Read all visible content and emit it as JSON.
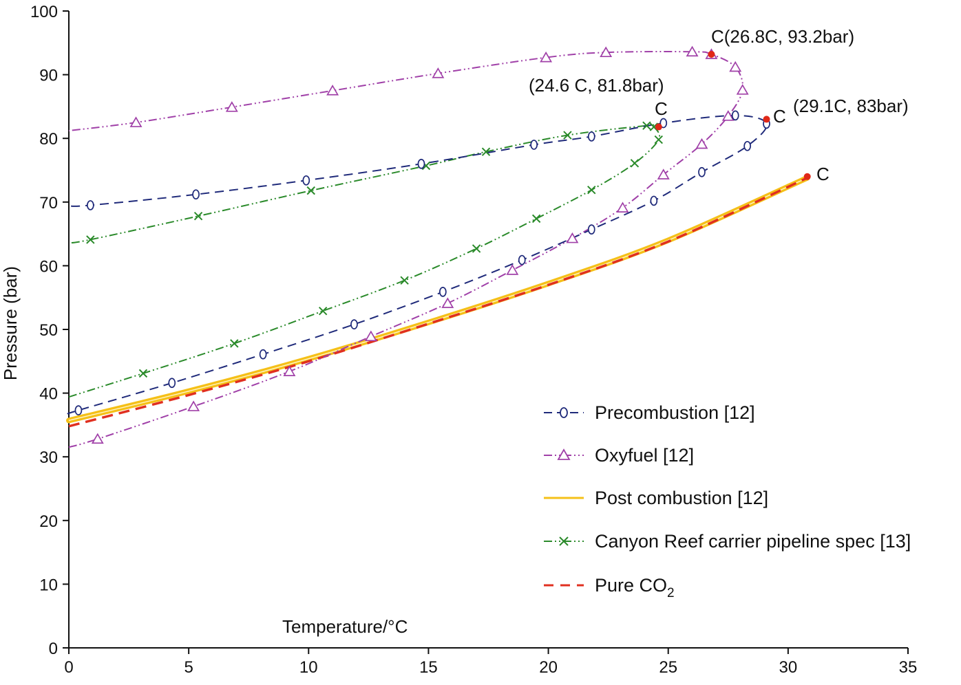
{
  "chart_data": {
    "type": "line",
    "title": "",
    "xlabel": "Temperature/°C",
    "ylabel": "Pressure (bar)",
    "xlim": [
      0,
      35
    ],
    "ylim": [
      0,
      100
    ],
    "xticks": [
      0,
      5,
      10,
      15,
      20,
      25,
      30,
      35
    ],
    "yticks": [
      0,
      10,
      20,
      30,
      40,
      50,
      60,
      70,
      80,
      90,
      100
    ],
    "legend_position": "bottom-right",
    "series": [
      {
        "name": "Precombustion [12]",
        "color": "#1f2a7a",
        "style": "dashed",
        "marker": "circle-open",
        "x": [
          0,
          0.4,
          4.3,
          8.1,
          11.9,
          15.6,
          18.9,
          21.8,
          24.4,
          26.4,
          28.3,
          29.1,
          27.8,
          24.8,
          21.8,
          19.4,
          14.7,
          9.9,
          5.3,
          0.9,
          0
        ],
        "y": [
          36.8,
          37.3,
          41.6,
          46.1,
          50.8,
          55.9,
          60.9,
          65.7,
          70.2,
          74.7,
          78.8,
          82.3,
          83.6,
          82.4,
          80.3,
          79.0,
          76.0,
          73.4,
          71.2,
          69.5,
          69.4
        ]
      },
      {
        "name": "Oxyfuel [12]",
        "color": "#a040a8",
        "style": "dash-dot-dot",
        "marker": "triangle-open",
        "x": [
          0,
          1.2,
          5.2,
          9.2,
          12.6,
          15.8,
          18.5,
          21.0,
          23.1,
          24.8,
          26.4,
          27.5,
          28.1,
          27.8,
          26.8,
          26.0,
          22.4,
          19.9,
          15.4,
          11.0,
          6.8,
          2.8,
          0
        ],
        "y": [
          31.5,
          32.8,
          37.9,
          43.4,
          48.9,
          54.1,
          59.3,
          64.3,
          69.1,
          74.3,
          79.1,
          83.5,
          87.6,
          91.2,
          93.2,
          93.6,
          93.5,
          92.7,
          90.2,
          87.5,
          84.9,
          82.5,
          81.2
        ]
      },
      {
        "name": "Post combustion [12]",
        "color": "#f5c018",
        "style": "solid",
        "marker": "none",
        "x": [
          0,
          5,
          10,
          15,
          20,
          25,
          30.8
        ],
        "y": [
          35.7,
          40.3,
          45.4,
          51.1,
          57.2,
          64.0,
          73.8
        ]
      },
      {
        "name": "Canyon Reef carrier pipeline spec [13]",
        "color": "#2a8a2a",
        "style": "dash-dot-dot",
        "marker": "x",
        "x": [
          0,
          3.1,
          6.9,
          10.6,
          14.0,
          17.0,
          19.5,
          21.8,
          23.6,
          24.6,
          24.4,
          24.1,
          20.8,
          17.4,
          14.9,
          10.1,
          5.4,
          0.9,
          0
        ],
        "y": [
          39.4,
          43.1,
          47.8,
          52.9,
          57.7,
          62.7,
          67.4,
          71.9,
          76.1,
          79.8,
          81.8,
          82.0,
          80.5,
          77.9,
          75.7,
          71.8,
          67.8,
          64.1,
          63.6
        ]
      },
      {
        "name": "Pure CO2",
        "color": "#e03020",
        "style": "dashed",
        "marker": "none",
        "x": [
          0,
          5,
          10,
          15,
          20,
          25,
          30.8
        ],
        "y": [
          34.8,
          39.7,
          45.0,
          50.9,
          57.0,
          63.8,
          73.8
        ]
      }
    ],
    "critical_points": [
      {
        "x": 26.8,
        "y": 93.2
      },
      {
        "x": 24.6,
        "y": 81.8
      },
      {
        "x": 29.1,
        "y": 83
      },
      {
        "x": 30.8,
        "y": 74
      }
    ]
  },
  "annotations": {
    "oxyfuel_critical": "C(26.8C, 93.2bar)",
    "canyon_critical_coords": "(24.6 C, 81.8bar)",
    "canyon_critical_label": "C",
    "precomb_critical_label": "C",
    "precomb_critical_coords": "(29.1C, 83bar)",
    "pure_critical_label": "C"
  },
  "legend": {
    "items": [
      {
        "label": "Precombustion [12]"
      },
      {
        "label": "Oxyfuel [12]"
      },
      {
        "label": "Post combustion [12]"
      },
      {
        "label": "Canyon Reef carrier pipeline spec [13]"
      },
      {
        "label_main": "Pure CO",
        "label_sub": "2"
      }
    ]
  },
  "colors": {
    "axis": "#111111",
    "critical_point": "#e02818"
  }
}
